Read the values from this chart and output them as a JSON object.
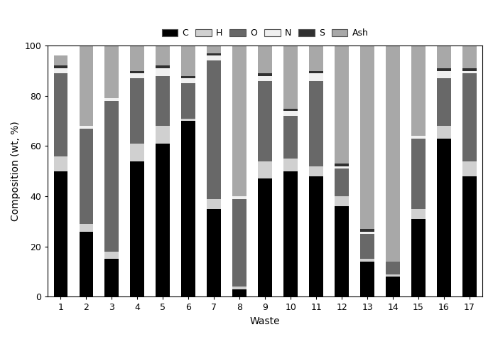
{
  "categories": [
    "1",
    "2",
    "3",
    "4",
    "5",
    "6",
    "7",
    "8",
    "9",
    "10",
    "11",
    "12",
    "13",
    "14",
    "15",
    "16",
    "17"
  ],
  "components": [
    "C",
    "H",
    "O",
    "N",
    "S",
    "Ash"
  ],
  "colors": [
    "#000000",
    "#d0d0d0",
    "#686868",
    "#f0f0f0",
    "#303030",
    "#a8a8a8"
  ],
  "data": {
    "C": [
      50,
      26,
      15,
      54,
      61,
      70,
      35,
      3,
      47,
      50,
      48,
      36,
      14,
      8,
      31,
      63,
      48
    ],
    "H": [
      6,
      3,
      3,
      7,
      7,
      1,
      4,
      1,
      7,
      5,
      4,
      4,
      1,
      1,
      4,
      5,
      6
    ],
    "O": [
      33,
      38,
      60,
      26,
      20,
      14,
      55,
      35,
      32,
      17,
      34,
      11,
      10,
      5,
      28,
      19,
      35
    ],
    "N": [
      2,
      1,
      1,
      2,
      3,
      2,
      2,
      1,
      2,
      2,
      3,
      1,
      1,
      0,
      1,
      3,
      1
    ],
    "S": [
      1,
      0,
      0,
      1,
      1,
      1,
      1,
      0,
      1,
      1,
      1,
      1,
      1,
      0,
      0,
      1,
      1
    ],
    "Ash": [
      4,
      32,
      21,
      10,
      8,
      12,
      3,
      60,
      11,
      25,
      10,
      47,
      73,
      86,
      36,
      9,
      9
    ]
  },
  "ylabel": "Composition (wt, %)",
  "xlabel": "Waste",
  "ylim": [
    0,
    100
  ],
  "yticks": [
    0,
    20,
    40,
    60,
    80,
    100
  ],
  "figsize": [
    6.94,
    4.74
  ],
  "dpi": 100,
  "bar_width": 0.55
}
